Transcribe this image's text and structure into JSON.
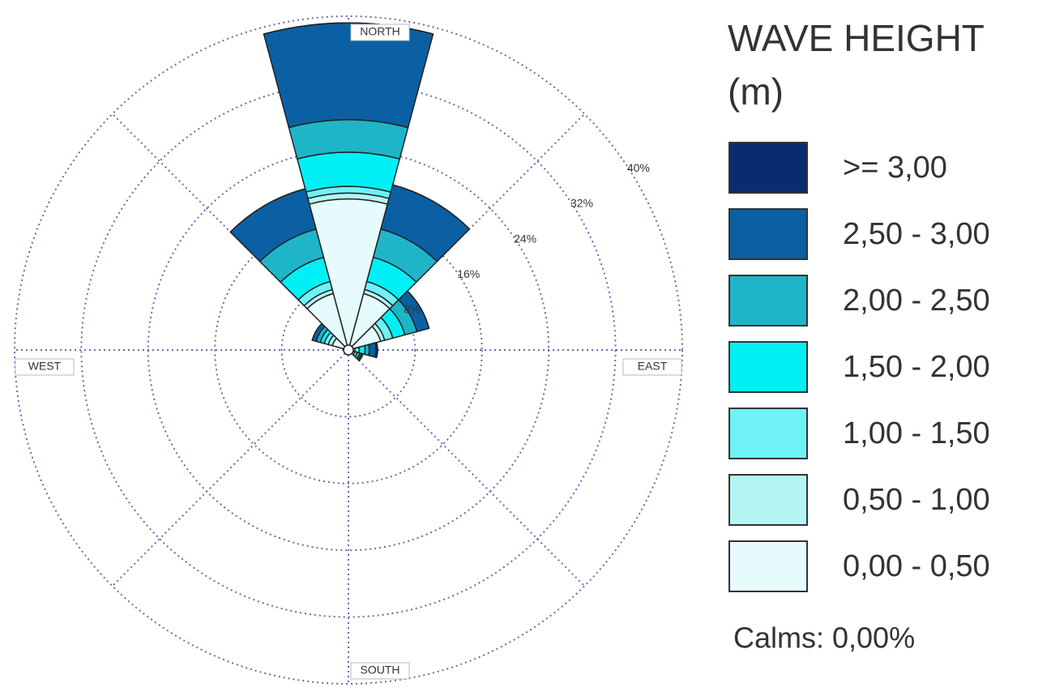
{
  "chart_data": {
    "type": "polar-stacked-bar",
    "title": "WAVE HEIGHT (m)",
    "categories": [
      null,
      null,
      null,
      null,
      null,
      null,
      null,
      null,
      null,
      null,
      null,
      null
    ],
    "direction_labels": [
      "NORTH",
      "EAST",
      "SOUTH",
      "WEST"
    ],
    "ylim": [
      0,
      40
    ],
    "yticks": [
      {
        "value": 8,
        "label": "8%"
      },
      {
        "value": 16,
        "label": "16%"
      },
      {
        "value": 24,
        "label": "24%"
      },
      {
        "value": 32,
        "label": "32%"
      },
      {
        "value": 40,
        "label": "40%"
      }
    ],
    "series": [
      {
        "name": "0,00 - 0,50",
        "color": "#e6fbfb",
        "values": [
          18.1,
          7,
          4,
          0.5,
          0.5,
          0.2,
          0,
          0,
          0,
          0.2,
          2,
          7
        ]
      },
      {
        "name": "0,50 - 1,00",
        "color": "#b3f5f5",
        "values": [
          0.7,
          0.5,
          0.5,
          0.3,
          0.3,
          0,
          0,
          0,
          0,
          0,
          0.5,
          0.5
        ]
      },
      {
        "name": "1,00 - 1,50",
        "color": "#6ef2f5",
        "values": [
          0.8,
          1,
          1,
          0.5,
          0.3,
          0,
          0,
          0,
          0,
          0,
          0.5,
          1
        ]
      },
      {
        "name": "1,50 - 2,00",
        "color": "#00f0f5",
        "values": [
          4.1,
          3,
          1.5,
          0.7,
          0.3,
          0,
          0,
          0,
          0,
          0,
          0.5,
          3
        ]
      },
      {
        "name": "2,00 - 2,50",
        "color": "#1fb5c9",
        "values": [
          3.9,
          3.5,
          1.5,
          0.5,
          0.2,
          0,
          0,
          0,
          0,
          0,
          0.5,
          3.5
        ]
      },
      {
        "name": "2,50 - 3,00",
        "color": "#0a60a3",
        "values": [
          11.6,
          5.5,
          1.5,
          0.8,
          0.2,
          0,
          0,
          0,
          0,
          0,
          0.5,
          5
        ]
      },
      {
        "name": ">= 3,00",
        "color": "#082c6e",
        "values": [
          0,
          0,
          0,
          0.2,
          0,
          0,
          0,
          0,
          0,
          0,
          0,
          0
        ]
      }
    ],
    "calms": "Calms: 0,00%"
  }
}
